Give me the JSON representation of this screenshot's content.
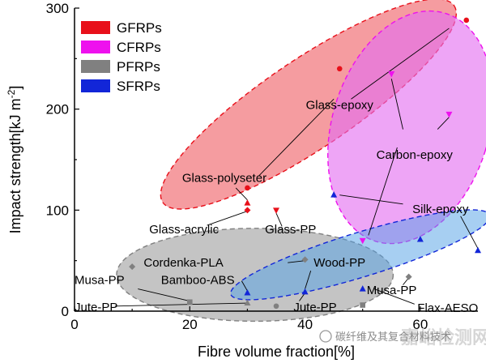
{
  "chart_data": {
    "type": "scatter",
    "xlabel": "Fibre volume fraction[%]",
    "ylabel_main": "Impact strength[kJ m",
    "ylabel_sup": "-2",
    "ylabel_tail": "]",
    "xlim": [
      0,
      70
    ],
    "ylim": [
      0,
      300
    ],
    "xticks": [
      0,
      20,
      40,
      60
    ],
    "yticks": [
      0,
      100,
      200,
      300
    ],
    "legend_position": "top-left",
    "series": [
      {
        "name": "GFRPs",
        "color": "#e8101a",
        "ellipse_fill": "rgba(239, 90, 96, 0.6)",
        "ellipse": {
          "cx": 40.6,
          "cy": 205,
          "rx": 30.5,
          "ry": 44,
          "angle_deg": -34
        },
        "points": [
          {
            "x": 30,
            "y": 122,
            "marker": "circle"
          },
          {
            "x": 46,
            "y": 240,
            "marker": "circle"
          },
          {
            "x": 68,
            "y": 288,
            "marker": "circle"
          },
          {
            "x": 30,
            "y": 107,
            "marker": "triangle-up"
          },
          {
            "x": 30,
            "y": 100,
            "marker": "diamond"
          },
          {
            "x": 35,
            "y": 100,
            "marker": "triangle-down"
          }
        ]
      },
      {
        "name": "CFRPs",
        "color": "#ee11ee",
        "ellipse_fill": "rgba(228, 110, 240, 0.62)",
        "ellipse": {
          "cx": 58.3,
          "cy": 182,
          "rx": 13.6,
          "ry": 118,
          "angle_deg": 17
        },
        "points": [
          {
            "x": 50,
            "y": 70,
            "marker": "triangle-down"
          },
          {
            "x": 55,
            "y": 235,
            "marker": "triangle-down"
          },
          {
            "x": 65,
            "y": 195,
            "marker": "triangle-down"
          }
        ]
      },
      {
        "name": "PFRPs",
        "color": "#808080",
        "ellipse_fill": "rgba(148, 148, 148, 0.55)",
        "ellipse": {
          "cx": 31.3,
          "cy": 36,
          "rx": 24,
          "ry": 46,
          "angle_deg": 0
        },
        "points": [
          {
            "x": 10,
            "y": 44,
            "marker": "diamond"
          },
          {
            "x": 20,
            "y": 9,
            "marker": "square"
          },
          {
            "x": 30,
            "y": 8,
            "marker": "triangle-up"
          },
          {
            "x": 35,
            "y": 5,
            "marker": "circle"
          },
          {
            "x": 40,
            "y": 51,
            "marker": "diamond"
          },
          {
            "x": 50,
            "y": 6,
            "marker": "square"
          },
          {
            "x": 58,
            "y": 34,
            "marker": "diamond"
          }
        ]
      },
      {
        "name": "SFRPs",
        "color": "#1226d8",
        "ellipse_fill": "rgba(80, 160, 230, 0.5)",
        "ellipse": {
          "cx": 49.6,
          "cy": 55.8,
          "rx": 23.5,
          "ry": 22,
          "angle_deg": -17
        },
        "points": [
          {
            "x": 30,
            "y": 18,
            "marker": "triangle-up"
          },
          {
            "x": 40,
            "y": 19,
            "marker": "triangle-up"
          },
          {
            "x": 45,
            "y": 115,
            "marker": "triangle-up"
          },
          {
            "x": 50,
            "y": 22,
            "marker": "triangle-up"
          },
          {
            "x": 60,
            "y": 71,
            "marker": "triangle-up"
          },
          {
            "x": 70,
            "y": 60,
            "marker": "triangle-up"
          }
        ]
      }
    ],
    "annotations": [
      {
        "text": "Glass-epoxy",
        "x": 46,
        "y": 200,
        "anchor": "middle",
        "leaders": [
          [
            45,
            210,
            32,
            134
          ],
          [
            48,
            210,
            65,
            280
          ]
        ]
      },
      {
        "text": "Carbon-epoxy",
        "x": 59,
        "y": 151,
        "anchor": "middle",
        "leaders": [
          [
            56,
            162,
            51,
            75
          ],
          [
            57,
            180,
            55,
            230
          ],
          [
            63,
            180,
            65,
            192
          ]
        ]
      },
      {
        "text": "Glass-polyseter",
        "x": 26,
        "y": 128,
        "anchor": "middle",
        "leaders": [
          [
            28,
            122,
            30,
            110
          ]
        ]
      },
      {
        "text": "Glass-acrylic",
        "x": 19,
        "y": 77,
        "anchor": "middle",
        "leaders": [
          [
            23,
            85,
            30,
            99
          ]
        ]
      },
      {
        "text": "Glass-PP",
        "x": 37.5,
        "y": 77,
        "anchor": "middle",
        "leaders": [
          [
            36,
            84,
            35,
            97
          ]
        ]
      },
      {
        "text": "Silk-epoxy",
        "x": 63.5,
        "y": 97,
        "anchor": "middle",
        "leaders": [
          [
            57,
            106,
            46,
            115
          ],
          [
            67,
            94,
            70,
            62
          ]
        ]
      },
      {
        "text": "Cordenka-PLA",
        "x": 12,
        "y": 44,
        "anchor": "start",
        "leaders": [
          [
            37,
            48,
            40,
            50
          ]
        ]
      },
      {
        "text": "Wood-PP",
        "x": 41.5,
        "y": 44,
        "anchor": "start",
        "leaders": [
          [
            41,
            40,
            40,
            22
          ]
        ]
      },
      {
        "text": "Bamboo-ABS",
        "x": 15,
        "y": 27,
        "anchor": "start",
        "leaders": [
          [
            29,
            30,
            30,
            20
          ]
        ]
      },
      {
        "text": "Musa-PP",
        "x": 0,
        "y": 27,
        "anchor": "start",
        "leaders": [
          [
            11,
            22,
            20,
            10
          ]
        ]
      },
      {
        "text": "Musa-PP",
        "x": 50.7,
        "y": 17,
        "anchor": "start",
        "leaders": [
          [
            57,
            26,
            58,
            33
          ]
        ]
      },
      {
        "text": "Jute-PP",
        "x": 0,
        "y": 0,
        "anchor": "start",
        "leaders": [
          [
            7,
            5,
            30,
            8
          ]
        ]
      },
      {
        "text": "Jute-PP",
        "x": 38,
        "y": 0,
        "anchor": "start",
        "leaders": [
          [
            39,
            10,
            40,
            18
          ]
        ]
      },
      {
        "text": "Flax-AESO",
        "x": 59.5,
        "y": -1,
        "anchor": "start",
        "leaders": [
          [
            59,
            7,
            52,
            22
          ]
        ]
      }
    ]
  },
  "watermark": {
    "text": "碳纤维及其复合材料技术",
    "faint_text": "嘉峪检测网"
  }
}
